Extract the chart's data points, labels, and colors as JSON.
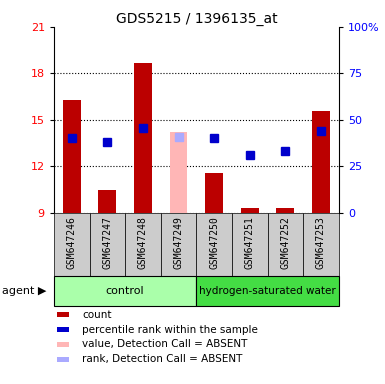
{
  "title": "GDS5215 / 1396135_at",
  "samples": [
    "GSM647246",
    "GSM647247",
    "GSM647248",
    "GSM647249",
    "GSM647250",
    "GSM647251",
    "GSM647252",
    "GSM647253"
  ],
  "red_values": [
    16.3,
    10.5,
    18.7,
    null,
    11.6,
    9.3,
    9.3,
    15.6
  ],
  "blue_values": [
    13.8,
    13.6,
    14.5,
    null,
    13.8,
    12.75,
    13.0,
    14.3
  ],
  "pink_value": [
    null,
    null,
    null,
    14.2,
    null,
    null,
    null,
    null
  ],
  "lavender_value": [
    null,
    null,
    null,
    13.9,
    null,
    null,
    null,
    null
  ],
  "ylim_left": [
    9,
    21
  ],
  "ylim_right": [
    0,
    100
  ],
  "yticks_left": [
    9,
    12,
    15,
    18,
    21
  ],
  "yticks_right": [
    0,
    25,
    50,
    75,
    100
  ],
  "yticklabels_right": [
    "0",
    "25",
    "50",
    "75",
    "100%"
  ],
  "bar_color": "#bb0000",
  "blue_color": "#0000cc",
  "pink_color": "#ffb6b6",
  "lavender_color": "#aaaaff",
  "control_color": "#aaffaa",
  "hw_color": "#44dd44",
  "sample_box_color": "#cccccc",
  "bar_width": 0.5,
  "blue_marker_size": 6
}
